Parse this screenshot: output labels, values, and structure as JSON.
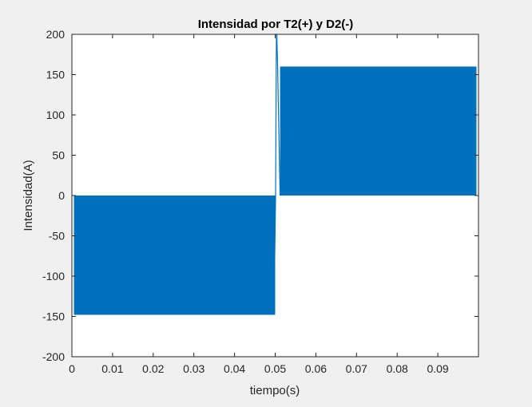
{
  "chart_data": {
    "type": "line",
    "title": "Intensidad por T2(+) y D2(-)",
    "xlabel": "tiempo(s)",
    "ylabel": "Intensidad(A)",
    "xlim": [
      0,
      0.1
    ],
    "ylim": [
      -200,
      200
    ],
    "x_ticks": [
      0,
      0.01,
      0.02,
      0.03,
      0.04,
      0.05,
      0.06,
      0.07,
      0.08,
      0.09
    ],
    "x_tick_labels": [
      "0",
      "0.01",
      "0.02",
      "0.03",
      "0.04",
      "0.05",
      "0.06",
      "0.07",
      "0.08",
      "0.09"
    ],
    "y_ticks": [
      200,
      150,
      100,
      50,
      0,
      -50,
      -100,
      -150,
      -200
    ],
    "y_tick_labels": [
      "200",
      "150",
      "100",
      "50",
      "0",
      "-50",
      "-100",
      "-150",
      "-200"
    ],
    "grid": false,
    "line_color": "#0072bd",
    "series": [
      {
        "x": [
          0,
          0.0005,
          0.0005,
          0.0005,
          0.05,
          0.05,
          0.0503,
          0.0503,
          0.0506,
          0.0506,
          0.0995
        ],
        "y_low": [
          0,
          0,
          -148,
          -148,
          -148,
          0,
          -148,
          200,
          0,
          0,
          0
        ],
        "y_high": [
          0,
          0,
          0,
          0,
          0,
          0,
          200,
          200,
          160,
          160,
          160
        ]
      }
    ],
    "segments": [
      {
        "x_start": 0.0005,
        "x_end": 0.05,
        "y_min": -148,
        "y_max": 0
      },
      {
        "x_start": 0.0512,
        "x_end": 0.0995,
        "y_min": 0,
        "y_max": 160
      }
    ],
    "transition": {
      "x": [
        0.0497,
        0.0501,
        0.0503,
        0.0504,
        0.0506,
        0.0512
      ],
      "y": [
        -148,
        0,
        200,
        200,
        160,
        0
      ]
    }
  }
}
